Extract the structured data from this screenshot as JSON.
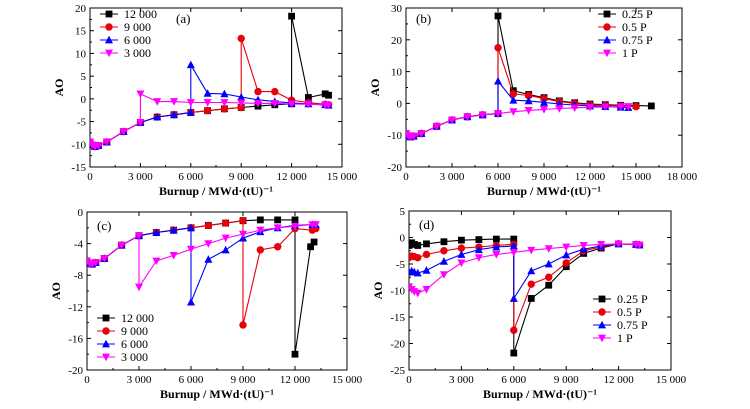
{
  "chart_data": [
    {
      "panel": "(a)",
      "type": "line",
      "xlabel": "Burnup / MWd·(tU)⁻¹",
      "ylabel": "AO",
      "xlim": [
        0,
        15000
      ],
      "ylim": [
        -15,
        20
      ],
      "xticks": [
        0,
        3000,
        6000,
        9000,
        12000,
        15000
      ],
      "xtick_labels": [
        "0",
        "3 000",
        "6 000",
        "9 000",
        "12 000",
        "15 000"
      ],
      "yticks": [
        -15,
        -10,
        -5,
        0,
        5,
        10,
        15,
        20
      ],
      "ytick_labels": [
        "-15",
        "-10",
        "-5",
        "0",
        "5",
        "10",
        "15",
        "20"
      ],
      "legend": "top-left",
      "series": [
        {
          "name": "12 000",
          "color": "#000000",
          "marker": "square",
          "x": [
            0,
            150,
            300,
            500,
            1000,
            2000,
            3000,
            4000,
            5000,
            6000,
            7000,
            8000,
            9000,
            10000,
            11000,
            12000,
            12000,
            13000,
            14000,
            14200
          ],
          "y": [
            -9.5,
            -10.2,
            -10.5,
            -10.3,
            -9.5,
            -7.2,
            -5.2,
            -4.0,
            -3.5,
            -3.0,
            -2.6,
            -2.2,
            -1.9,
            -1.6,
            -1.3,
            -1.1,
            18.2,
            0.3,
            1.1,
            0.8
          ]
        },
        {
          "name": "9 000",
          "color": "#e8000b",
          "marker": "circle",
          "x": [
            0,
            150,
            300,
            500,
            1000,
            2000,
            3000,
            4000,
            5000,
            6000,
            7000,
            8000,
            9000,
            9000,
            10000,
            11000,
            12000,
            13000,
            14000,
            14200
          ],
          "y": [
            -9.5,
            -10.2,
            -10.5,
            -10.3,
            -9.5,
            -7.2,
            -5.2,
            -4.0,
            -3.5,
            -3.0,
            -2.6,
            -2.2,
            -1.9,
            13.3,
            1.6,
            1.6,
            -0.3,
            -0.8,
            -1.2,
            -1.3
          ]
        },
        {
          "name": "6 000",
          "color": "#0000ff",
          "marker": "triangle-up",
          "x": [
            0,
            150,
            300,
            500,
            1000,
            2000,
            3000,
            4000,
            5000,
            6000,
            6000,
            7000,
            8000,
            9000,
            10000,
            11000,
            12000,
            13000,
            14000,
            14200
          ],
          "y": [
            -9.5,
            -10.2,
            -10.5,
            -10.3,
            -9.5,
            -7.2,
            -5.2,
            -4.0,
            -3.5,
            -3.0,
            7.5,
            1.2,
            1.1,
            0.4,
            -0.2,
            -0.6,
            -0.9,
            -1.1,
            -1.3,
            -1.4
          ]
        },
        {
          "name": "3 000",
          "color": "#ff00ff",
          "marker": "triangle-down",
          "x": [
            0,
            150,
            300,
            500,
            1000,
            2000,
            3000,
            3000,
            4000,
            5000,
            6000,
            7000,
            8000,
            9000,
            10000,
            11000,
            12000,
            13000,
            14000,
            14200
          ],
          "y": [
            -9.5,
            -10.2,
            -10.5,
            -10.3,
            -9.5,
            -7.2,
            -5.2,
            1.1,
            -0.6,
            -0.6,
            -0.8,
            -0.8,
            -0.8,
            -0.9,
            -1.0,
            -1.0,
            -1.1,
            -1.2,
            -1.3,
            -1.4
          ]
        }
      ]
    },
    {
      "panel": "(b)",
      "type": "line",
      "xlabel": "Burnup / MWd·(tU)⁻¹",
      "ylabel": "AO",
      "xlim": [
        0,
        18000
      ],
      "ylim": [
        -20,
        30
      ],
      "xticks": [
        0,
        3000,
        6000,
        9000,
        12000,
        15000,
        18000
      ],
      "xtick_labels": [
        "0",
        "3 000",
        "6 000",
        "9 000",
        "12 000",
        "15 000",
        "18 000"
      ],
      "yticks": [
        -20,
        -10,
        0,
        10,
        20,
        30
      ],
      "ytick_labels": [
        "-20",
        "-10",
        "0",
        "10",
        "20",
        "30"
      ],
      "legend": "top-right",
      "series": [
        {
          "name": "0.25 P",
          "color": "#000000",
          "marker": "square",
          "x": [
            0,
            150,
            300,
            500,
            1000,
            2000,
            3000,
            4000,
            5000,
            6000,
            6000,
            7000,
            8000,
            9000,
            10000,
            11000,
            12000,
            13000,
            14000,
            15000,
            16000
          ],
          "y": [
            -9.5,
            -10.2,
            -10.5,
            -10.3,
            -9.5,
            -7.2,
            -5.2,
            -4.2,
            -3.6,
            -3.2,
            27.5,
            4.0,
            2.8,
            1.8,
            0.8,
            0.2,
            -0.2,
            -0.4,
            -0.6,
            -0.7,
            -0.8
          ]
        },
        {
          "name": "0.5 P",
          "color": "#e8000b",
          "marker": "circle",
          "x": [
            0,
            150,
            300,
            500,
            1000,
            2000,
            3000,
            4000,
            5000,
            6000,
            6000,
            7000,
            8000,
            9000,
            10000,
            11000,
            12000,
            13000,
            14000,
            15000
          ],
          "y": [
            -9.5,
            -10.2,
            -10.5,
            -10.3,
            -9.5,
            -7.2,
            -5.2,
            -4.2,
            -3.6,
            -3.2,
            17.5,
            3.0,
            2.5,
            1.5,
            0.6,
            0.0,
            -0.4,
            -0.6,
            -0.8,
            -1.0
          ]
        },
        {
          "name": "0.75 P",
          "color": "#0000ff",
          "marker": "triangle-up",
          "x": [
            0,
            150,
            300,
            500,
            1000,
            2000,
            3000,
            4000,
            5000,
            6000,
            6000,
            7000,
            8000,
            9000,
            10000,
            11000,
            12000,
            13000,
            14000,
            14500
          ],
          "y": [
            -9.5,
            -10.2,
            -10.5,
            -10.3,
            -9.5,
            -7.2,
            -5.2,
            -4.2,
            -3.6,
            -3.2,
            7.0,
            1.0,
            0.8,
            0.3,
            -0.2,
            -0.5,
            -0.8,
            -1.0,
            -1.2,
            -1.3
          ]
        },
        {
          "name": "1 P",
          "color": "#ff00ff",
          "marker": "triangle-down",
          "x": [
            0,
            150,
            300,
            500,
            1000,
            2000,
            3000,
            4000,
            5000,
            6000,
            7000,
            8000,
            9000,
            10000,
            11000,
            12000,
            13000,
            14000,
            14500
          ],
          "y": [
            -9.5,
            -10.2,
            -10.5,
            -10.3,
            -9.5,
            -7.2,
            -5.2,
            -4.2,
            -3.6,
            -3.2,
            -2.6,
            -2.2,
            -1.9,
            -1.6,
            -1.4,
            -1.2,
            -1.1,
            -1.0,
            -1.0
          ]
        }
      ]
    },
    {
      "panel": "(c)",
      "type": "line",
      "xlabel": "Burnup / MWd·(tU)⁻¹",
      "ylabel": "AO",
      "xlim": [
        0,
        15000
      ],
      "ylim": [
        -20,
        0
      ],
      "xticks": [
        0,
        3000,
        6000,
        9000,
        12000,
        15000
      ],
      "xtick_labels": [
        "0",
        "3 000",
        "6 000",
        "9 000",
        "12 000",
        "15 000"
      ],
      "yticks": [
        -20,
        -16,
        -12,
        -8,
        -4,
        0
      ],
      "ytick_labels": [
        "-20",
        "-16",
        "-12",
        "-8",
        "-4",
        "0"
      ],
      "legend": "bottom-left",
      "series": [
        {
          "name": "12 000",
          "color": "#000000",
          "marker": "square",
          "x": [
            0,
            150,
            300,
            500,
            1000,
            2000,
            3000,
            4000,
            5000,
            6000,
            7000,
            8000,
            9000,
            10000,
            11000,
            12000,
            12000,
            12900,
            13100
          ],
          "y": [
            -6.2,
            -6.5,
            -6.6,
            -6.4,
            -5.9,
            -4.2,
            -3.0,
            -2.6,
            -2.3,
            -2.0,
            -1.7,
            -1.4,
            -1.1,
            -1.0,
            -1.0,
            -1.0,
            -18.0,
            -4.4,
            -3.8
          ]
        },
        {
          "name": "9 000",
          "color": "#e8000b",
          "marker": "circle",
          "x": [
            0,
            150,
            300,
            500,
            1000,
            2000,
            3000,
            4000,
            5000,
            6000,
            7000,
            8000,
            9000,
            9000,
            10000,
            11000,
            12000,
            13000,
            13200
          ],
          "y": [
            -6.2,
            -6.5,
            -6.6,
            -6.4,
            -5.9,
            -4.2,
            -3.0,
            -2.6,
            -2.3,
            -2.0,
            -1.7,
            -1.4,
            -1.1,
            -14.3,
            -4.8,
            -4.4,
            -2.1,
            -2.3,
            -2.1
          ]
        },
        {
          "name": "6 000",
          "color": "#0000ff",
          "marker": "triangle-up",
          "x": [
            0,
            150,
            300,
            500,
            1000,
            2000,
            3000,
            4000,
            5000,
            6000,
            6000,
            7000,
            8000,
            9000,
            10000,
            11000,
            12000,
            13000,
            13200
          ],
          "y": [
            -6.2,
            -6.5,
            -6.6,
            -6.4,
            -5.9,
            -4.2,
            -3.0,
            -2.6,
            -2.3,
            -2.0,
            -11.4,
            -6.0,
            -4.8,
            -3.3,
            -2.5,
            -2.0,
            -1.7,
            -1.6,
            -1.6
          ]
        },
        {
          "name": "3 000",
          "color": "#ff00ff",
          "marker": "triangle-down",
          "x": [
            0,
            150,
            300,
            500,
            1000,
            2000,
            3000,
            3000,
            4000,
            5000,
            6000,
            7000,
            8000,
            9000,
            10000,
            11000,
            12000,
            13000,
            13200
          ],
          "y": [
            -6.2,
            -6.5,
            -6.6,
            -6.4,
            -5.9,
            -4.2,
            -3.0,
            -9.5,
            -6.2,
            -5.5,
            -4.7,
            -4.0,
            -3.3,
            -2.8,
            -2.3,
            -2.0,
            -1.8,
            -1.6,
            -1.6
          ]
        }
      ]
    },
    {
      "panel": "(d)",
      "type": "line",
      "xlabel": "Burnup / MWd·(tU)⁻¹",
      "ylabel": "AO",
      "xlim": [
        0,
        15000
      ],
      "ylim": [
        -25,
        5
      ],
      "xticks": [
        0,
        3000,
        6000,
        9000,
        12000,
        15000
      ],
      "xtick_labels": [
        "0",
        "3 000",
        "6 000",
        "9 000",
        "12 000",
        "15 000"
      ],
      "yticks": [
        -25,
        -20,
        -15,
        -10,
        -5,
        0,
        5
      ],
      "ytick_labels": [
        "-25",
        "-20",
        "-15",
        "-10",
        "-5",
        "0",
        "5"
      ],
      "legend": "bottom-right",
      "series": [
        {
          "name": "0.25 P",
          "color": "#000000",
          "marker": "square",
          "x": [
            0,
            150,
            300,
            500,
            1000,
            2000,
            3000,
            4000,
            5000,
            6000,
            6000,
            7000,
            8000,
            9000,
            10000,
            11000,
            12000,
            13000,
            13200
          ],
          "y": [
            -1.5,
            -1.0,
            -1.3,
            -1.5,
            -1.2,
            -0.8,
            -0.5,
            -0.4,
            -0.3,
            -0.3,
            -21.8,
            -11.5,
            -9.0,
            -5.5,
            -3.0,
            -2.0,
            -1.2,
            -1.3,
            -1.4
          ]
        },
        {
          "name": "0.5 P",
          "color": "#e8000b",
          "marker": "circle",
          "x": [
            0,
            150,
            300,
            500,
            1000,
            2000,
            3000,
            4000,
            5000,
            6000,
            6000,
            7000,
            8000,
            9000,
            10000,
            11000,
            12000,
            13000,
            13200
          ],
          "y": [
            -3.8,
            -3.5,
            -3.6,
            -3.8,
            -3.2,
            -2.5,
            -2.0,
            -1.8,
            -1.5,
            -1.3,
            -17.5,
            -8.8,
            -7.5,
            -4.8,
            -2.5,
            -1.8,
            -1.2,
            -1.3,
            -1.4
          ]
        },
        {
          "name": "0.75 P",
          "color": "#0000ff",
          "marker": "triangle-up",
          "x": [
            0,
            150,
            300,
            500,
            1000,
            2000,
            3000,
            4000,
            5000,
            6000,
            6000,
            7000,
            8000,
            9000,
            10000,
            11000,
            12000,
            13000,
            13200
          ],
          "y": [
            -6.5,
            -6.3,
            -6.5,
            -6.7,
            -6.2,
            -4.5,
            -3.2,
            -2.3,
            -1.8,
            -1.6,
            -11.5,
            -6.3,
            -5.0,
            -3.3,
            -2.2,
            -1.6,
            -1.2,
            -1.3,
            -1.4
          ]
        },
        {
          "name": "1 P",
          "color": "#ff00ff",
          "marker": "triangle-down",
          "x": [
            0,
            150,
            300,
            500,
            1000,
            2000,
            3000,
            4000,
            5000,
            6000,
            7000,
            8000,
            9000,
            10000,
            11000,
            12000,
            13000,
            13200
          ],
          "y": [
            -9.3,
            -9.8,
            -10.2,
            -10.5,
            -9.8,
            -7.0,
            -4.8,
            -3.8,
            -3.2,
            -2.8,
            -2.4,
            -2.1,
            -1.8,
            -1.5,
            -1.3,
            -1.2,
            -1.3,
            -1.4
          ]
        }
      ]
    }
  ]
}
